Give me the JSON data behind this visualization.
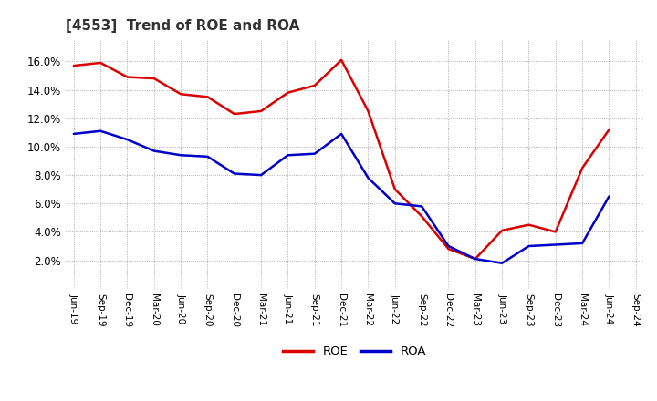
{
  "title": "[4553]  Trend of ROE and ROA",
  "x_labels": [
    "Jun-19",
    "Sep-19",
    "Dec-19",
    "Mar-20",
    "Jun-20",
    "Sep-20",
    "Dec-20",
    "Mar-21",
    "Jun-21",
    "Sep-21",
    "Dec-21",
    "Mar-22",
    "Jun-22",
    "Sep-22",
    "Dec-22",
    "Mar-23",
    "Jun-23",
    "Sep-23",
    "Dec-23",
    "Mar-24",
    "Jun-24",
    "Sep-24"
  ],
  "roe": [
    15.7,
    15.9,
    14.9,
    14.8,
    13.7,
    13.5,
    12.3,
    12.5,
    13.8,
    14.3,
    16.1,
    12.5,
    7.0,
    5.1,
    2.8,
    2.1,
    4.1,
    4.5,
    4.0,
    8.5,
    11.2,
    null
  ],
  "roa": [
    10.9,
    11.1,
    10.5,
    9.7,
    9.4,
    9.3,
    8.1,
    8.0,
    9.4,
    9.5,
    10.9,
    7.8,
    6.0,
    5.8,
    3.0,
    2.1,
    1.8,
    3.0,
    3.1,
    3.2,
    6.5,
    null
  ],
  "roe_color": "#dd0000",
  "roa_color": "#0000cc",
  "bg_color": "#ffffff",
  "plot_bg_color": "#ffffff",
  "grid_color": "#999999",
  "ylim": [
    0,
    17.5
  ],
  "yticks": [
    2.0,
    4.0,
    6.0,
    8.0,
    10.0,
    12.0,
    14.0,
    16.0
  ],
  "legend_labels": [
    "ROE",
    "ROA"
  ],
  "line_width": 1.8
}
